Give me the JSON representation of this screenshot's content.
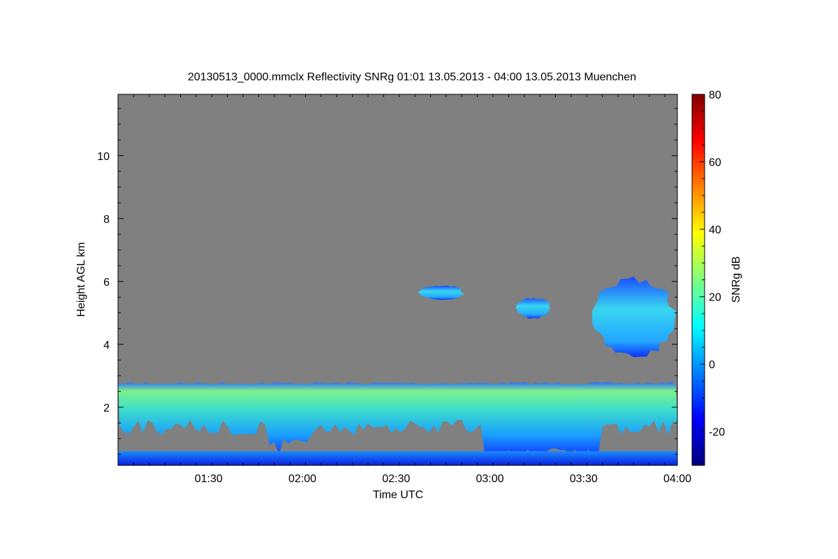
{
  "chart_data": {
    "type": "heatmap",
    "title": "20130513_0000.mmclx Reflectivity SNRg   01:01 13.05.2013 - 04:00 13.05.2013 Muenchen",
    "xlabel": "Time UTC",
    "ylabel": "Height AGL km",
    "x_range": [
      "01:01",
      "04:00"
    ],
    "x_ticks": [
      "01:30",
      "02:00",
      "02:30",
      "03:00",
      "03:30",
      "04:00"
    ],
    "y_range": [
      0.15,
      11.95
    ],
    "y_ticks": [
      2,
      4,
      6,
      8,
      10
    ],
    "colorbar": {
      "label": "SNRg dB",
      "range": [
        -30,
        80
      ],
      "ticks": [
        -20,
        0,
        20,
        40,
        60,
        80
      ]
    },
    "background_color": "#808080",
    "features": [
      {
        "name": "boundary layer cloud",
        "t_start": "01:01",
        "t_end": "04:00",
        "top_km": 2.8,
        "base_km": 1.4,
        "snr_db": [
          0,
          20
        ]
      },
      {
        "name": "near-surface return",
        "t_start": "01:01",
        "t_end": "04:00",
        "top_km": 0.6,
        "base_km": 0.15,
        "snr_db": [
          -20,
          10
        ]
      },
      {
        "name": "mid-level cloud fragment 1",
        "t_start": "02:37",
        "t_end": "02:52",
        "top_km": 5.9,
        "base_km": 5.4,
        "snr_db": [
          -20,
          -5
        ]
      },
      {
        "name": "mid-level cloud fragment 2",
        "t_start": "03:08",
        "t_end": "03:20",
        "top_km": 5.5,
        "base_km": 4.8,
        "snr_db": [
          -20,
          -5
        ]
      },
      {
        "name": "mid-level cloud",
        "t_start": "03:32",
        "t_end": "04:00",
        "top_km": 6.2,
        "base_km": 3.5,
        "snr_db": [
          -10,
          15
        ]
      }
    ]
  }
}
